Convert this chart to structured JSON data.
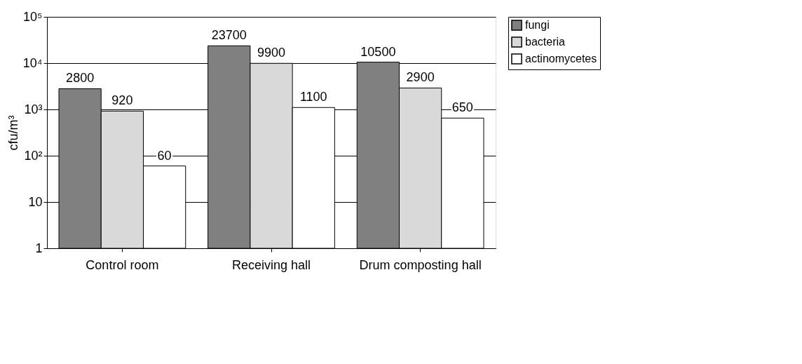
{
  "chart_data": {
    "type": "bar",
    "ylabel": "cfu/m³",
    "categories": [
      "Control room",
      "Receiving hall",
      "Drum composting hall"
    ],
    "series": [
      {
        "name": "fungi",
        "color": "#808080",
        "values": [
          2800,
          23700,
          10500
        ]
      },
      {
        "name": "bacteria",
        "color": "#d9d9d9",
        "values": [
          920,
          9900,
          2900
        ]
      },
      {
        "name": "actinomycetes",
        "color": "#ffffff",
        "values": [
          60,
          1100,
          650
        ]
      }
    ],
    "log": "y",
    "ylim": [
      1,
      100000
    ],
    "yticks": [
      1,
      10,
      {
        "value": 100,
        "label": "10²"
      },
      {
        "value": 1000,
        "label": "10³"
      },
      {
        "value": 10000,
        "label": "10⁴"
      },
      {
        "value": 100000,
        "label": "10⁵"
      }
    ],
    "grid": "y",
    "legend": "top right",
    "data_labels": true
  }
}
